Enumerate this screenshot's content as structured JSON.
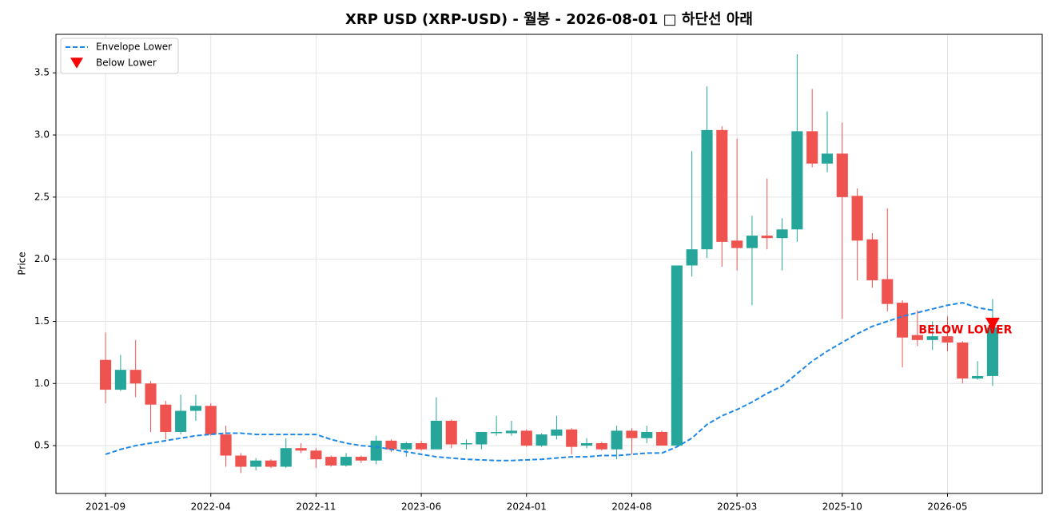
{
  "chart_data": {
    "type": "candlestick",
    "title": "XRP USD (XRP-USD) - 월봉 - 2026-08-01 □ 하단선 아래",
    "y_label": "Price",
    "x": [
      "2021-09",
      "2021-10",
      "2021-11",
      "2021-12",
      "2022-01",
      "2022-02",
      "2022-03",
      "2022-04",
      "2022-05",
      "2022-06",
      "2022-07",
      "2022-08",
      "2022-09",
      "2022-10",
      "2022-11",
      "2022-12",
      "2023-01",
      "2023-02",
      "2023-03",
      "2023-04",
      "2023-05",
      "2023-06",
      "2023-07",
      "2023-08",
      "2023-09",
      "2023-10",
      "2023-11",
      "2023-12",
      "2024-01",
      "2024-02",
      "2024-03",
      "2024-04",
      "2024-05",
      "2024-06",
      "2024-07",
      "2024-08",
      "2024-09",
      "2024-10",
      "2024-11",
      "2024-12",
      "2025-01",
      "2025-02",
      "2025-03",
      "2025-04",
      "2025-05",
      "2025-06",
      "2025-07",
      "2025-08",
      "2025-09",
      "2025-10",
      "2025-11",
      "2025-12",
      "2026-01",
      "2026-02",
      "2026-03",
      "2026-04",
      "2026-05",
      "2026-06",
      "2026-07",
      "2026-08"
    ],
    "open": [
      1.19,
      0.95,
      1.11,
      1.0,
      0.83,
      0.61,
      0.78,
      0.82,
      0.59,
      0.42,
      0.33,
      0.38,
      0.33,
      0.48,
      0.46,
      0.41,
      0.34,
      0.41,
      0.38,
      0.54,
      0.47,
      0.52,
      0.47,
      0.7,
      0.51,
      0.51,
      0.6,
      0.6,
      0.62,
      0.5,
      0.58,
      0.63,
      0.5,
      0.52,
      0.47,
      0.62,
      0.56,
      0.61,
      0.5,
      1.95,
      2.08,
      3.04,
      2.15,
      2.09,
      2.19,
      2.17,
      2.24,
      3.03,
      2.77,
      2.85,
      2.51,
      2.16,
      1.84,
      1.65,
      1.39,
      1.35,
      1.38,
      1.33,
      1.04,
      1.06
    ],
    "high": [
      1.41,
      1.23,
      1.35,
      1.02,
      0.86,
      0.91,
      0.91,
      0.84,
      0.66,
      0.44,
      0.4,
      0.39,
      0.56,
      0.52,
      0.48,
      0.42,
      0.44,
      0.42,
      0.58,
      0.55,
      0.53,
      0.54,
      0.89,
      0.71,
      0.55,
      0.61,
      0.74,
      0.7,
      0.63,
      0.6,
      0.74,
      0.64,
      0.56,
      0.53,
      0.66,
      0.64,
      0.66,
      0.62,
      1.95,
      2.87,
      3.39,
      3.07,
      2.97,
      2.35,
      2.65,
      2.33,
      3.65,
      3.37,
      3.19,
      3.1,
      2.57,
      2.21,
      2.41,
      1.67,
      1.59,
      1.5,
      1.54,
      1.34,
      1.18,
      1.68
    ],
    "low": [
      0.84,
      0.94,
      0.89,
      0.61,
      0.55,
      0.59,
      0.7,
      0.58,
      0.33,
      0.28,
      0.3,
      0.32,
      0.32,
      0.44,
      0.32,
      0.33,
      0.33,
      0.36,
      0.35,
      0.45,
      0.41,
      0.46,
      0.47,
      0.48,
      0.47,
      0.47,
      0.58,
      0.58,
      0.49,
      0.49,
      0.55,
      0.43,
      0.48,
      0.46,
      0.39,
      0.43,
      0.52,
      0.5,
      0.5,
      1.86,
      2.01,
      1.94,
      1.91,
      1.63,
      2.08,
      1.91,
      2.14,
      2.74,
      2.7,
      1.52,
      1.83,
      1.77,
      1.58,
      1.13,
      1.3,
      1.27,
      1.26,
      1.0,
      1.03,
      0.98
    ],
    "close": [
      0.95,
      1.11,
      1.0,
      0.83,
      0.61,
      0.78,
      0.82,
      0.59,
      0.42,
      0.33,
      0.38,
      0.33,
      0.48,
      0.46,
      0.39,
      0.34,
      0.41,
      0.38,
      0.54,
      0.47,
      0.52,
      0.47,
      0.7,
      0.51,
      0.52,
      0.61,
      0.61,
      0.62,
      0.5,
      0.59,
      0.63,
      0.49,
      0.52,
      0.47,
      0.62,
      0.56,
      0.61,
      0.5,
      1.95,
      2.08,
      3.04,
      2.14,
      2.09,
      2.19,
      2.17,
      2.24,
      3.03,
      2.77,
      2.85,
      2.5,
      2.15,
      1.83,
      1.64,
      1.37,
      1.35,
      1.38,
      1.33,
      1.04,
      1.06,
      1.45
    ],
    "up_color": "#26a69a",
    "down_color": "#ef5350",
    "lines": [
      {
        "name": "Envelope Lower",
        "color": "#1e88e5",
        "dashed": true,
        "values": [
          0.43,
          0.47,
          0.5,
          0.52,
          0.54,
          0.56,
          0.58,
          0.59,
          0.6,
          0.6,
          0.59,
          0.59,
          0.59,
          0.59,
          0.59,
          0.55,
          0.52,
          0.5,
          0.49,
          0.47,
          0.45,
          0.43,
          0.41,
          0.4,
          0.39,
          0.385,
          0.38,
          0.38,
          0.385,
          0.39,
          0.4,
          0.41,
          0.41,
          0.42,
          0.42,
          0.43,
          0.44,
          0.44,
          0.49,
          0.56,
          0.67,
          0.74,
          0.79,
          0.85,
          0.92,
          0.98,
          1.08,
          1.18,
          1.26,
          1.33,
          1.4,
          1.46,
          1.5,
          1.54,
          1.57,
          1.6,
          1.63,
          1.65,
          1.61,
          1.59
        ]
      }
    ],
    "markers": [
      {
        "name": "Below Lower",
        "color": "#ff0000",
        "x": [
          "2026-08"
        ],
        "values": [
          1.48
        ]
      }
    ],
    "annotations": [
      {
        "text": "BELOW LOWER",
        "x": "2026-08",
        "y": 1.43,
        "color": "#ee0000"
      }
    ],
    "ylim": [
      0.115,
      3.81
    ],
    "yticks": [
      0.5,
      {
        "value": 1.0,
        "label": "1.0"
      },
      1.5,
      {
        "value": 2.0,
        "label": "2.0"
      },
      2.5,
      {
        "value": 3.0,
        "label": "3.0"
      },
      3.5
    ],
    "xticks": [
      "2021-09",
      "2022-04",
      "2022-11",
      "2023-06",
      "2024-01",
      "2024-08",
      "2025-03",
      "2025-10",
      "2026-05"
    ],
    "grid": true,
    "legend": "upper left"
  }
}
